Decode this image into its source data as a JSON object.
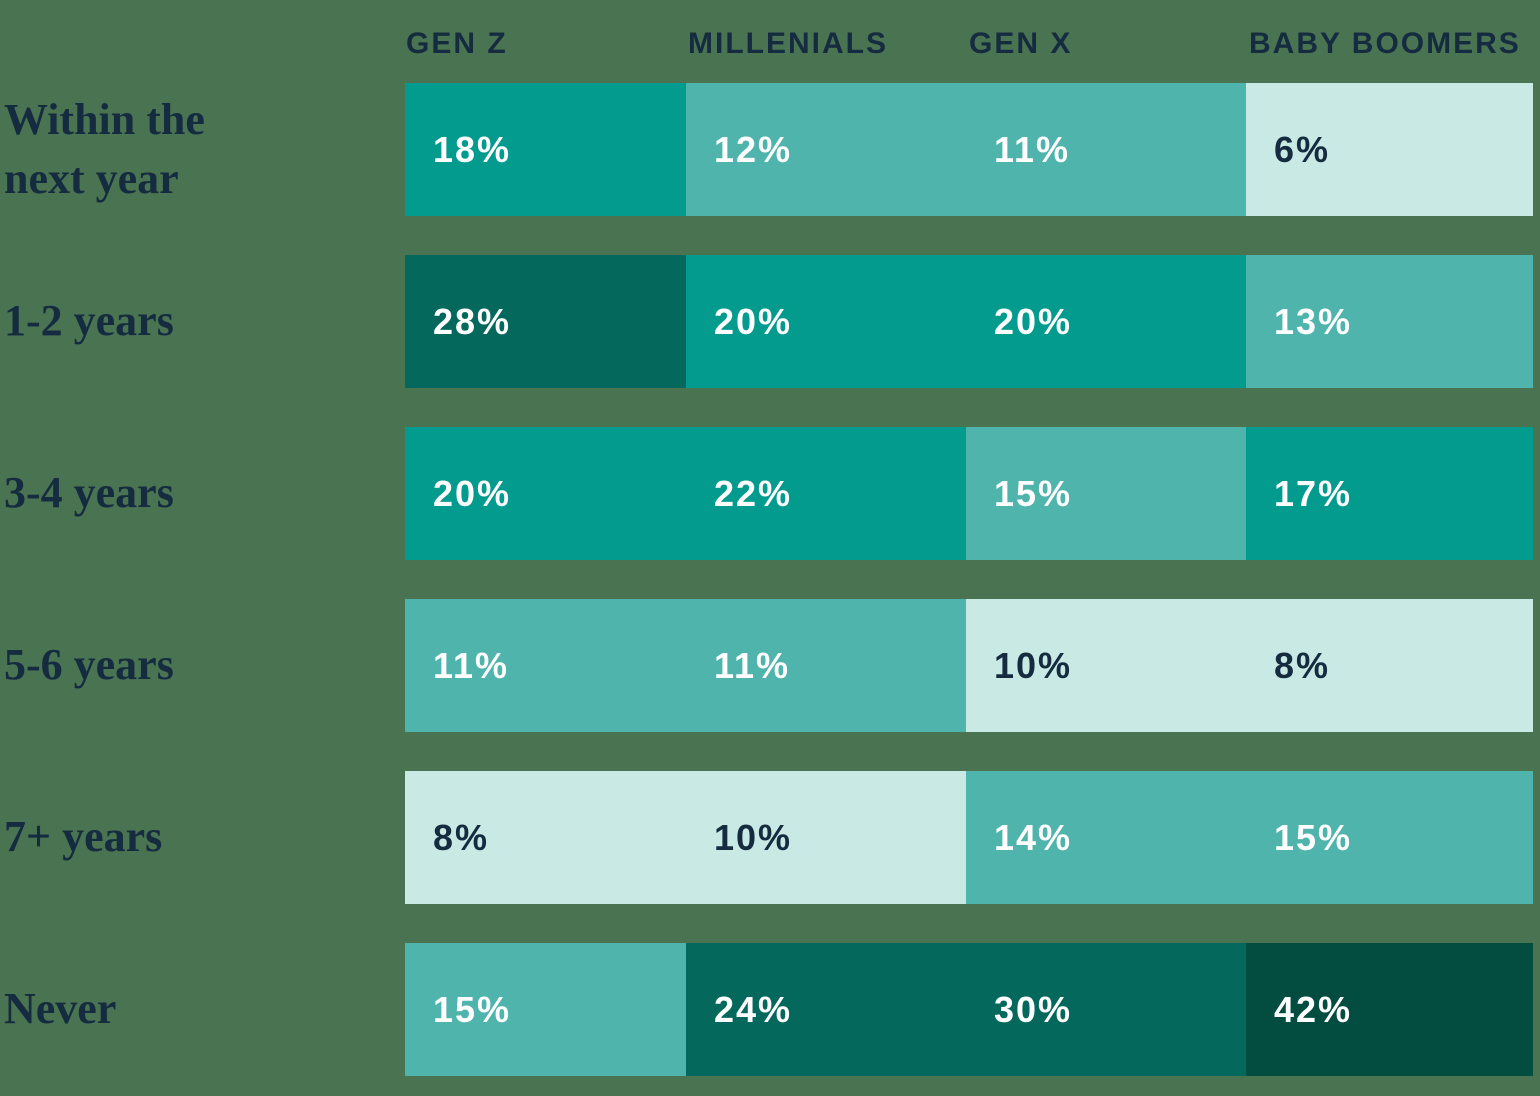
{
  "colors": {
    "background": "#4A7351",
    "label_text": "#152C40",
    "cell_text_dark": "#152C40",
    "cell_text_light": "#FFFFFF",
    "scale": {
      "lightest": "#C8E9E4",
      "medium": "#4FB4AB",
      "teal": "#029B8D",
      "dark": "#04695C",
      "darkest": "#034C40"
    }
  },
  "chart_data": {
    "type": "heatmap",
    "columns": [
      "GEN Z",
      "MILLENIALS",
      "GEN X",
      "BABY BOOMERS"
    ],
    "rows": [
      "Within the next year",
      "1-2 years",
      "3-4 years",
      "5-6 years",
      "7+ years",
      "Never"
    ],
    "unit": "%",
    "values": [
      [
        18,
        12,
        11,
        6
      ],
      [
        28,
        20,
        20,
        13
      ],
      [
        20,
        22,
        15,
        17
      ],
      [
        11,
        11,
        10,
        8
      ],
      [
        8,
        10,
        14,
        15
      ],
      [
        15,
        24,
        30,
        42
      ]
    ],
    "color_buckets": [
      {
        "max": 10,
        "color": "lightest",
        "text": "dark"
      },
      {
        "max": 16,
        "color": "medium",
        "text": "light"
      },
      {
        "max": 22,
        "color": "teal",
        "text": "light"
      },
      {
        "max": 30,
        "color": "dark",
        "text": "light"
      },
      {
        "max": 100,
        "color": "darkest",
        "text": "light"
      }
    ],
    "legend_position": "none",
    "grid": false
  }
}
